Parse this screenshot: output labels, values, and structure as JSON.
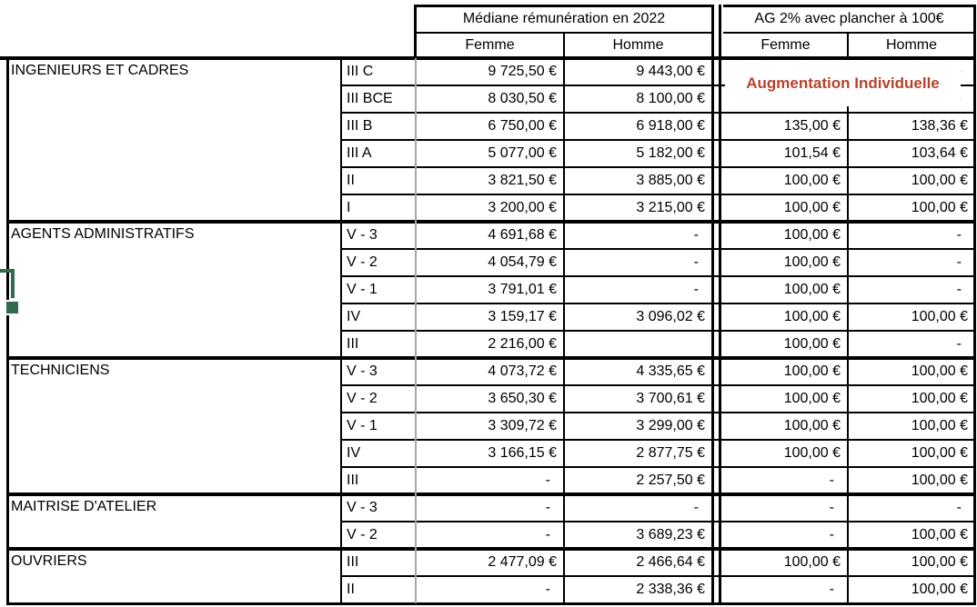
{
  "header": {
    "median_title": "Médiane rémunération en 2022",
    "ag_title": "AG 2% avec plancher à 100€",
    "median_cols": [
      "Femme",
      "Homme"
    ],
    "ag_cols": [
      "Femme",
      "Homme"
    ]
  },
  "overlay": {
    "label": "Augmentation Individuelle"
  },
  "colors": {
    "accent_red": "#b5432c",
    "selection_green": "#2f6b4c"
  },
  "groups": [
    {
      "name": "INGENIEURS ET CADRES",
      "rows": [
        {
          "echelon": "III C",
          "med_f": "9 725,50 €",
          "med_h": "9 443,00 €",
          "ag_f": "-",
          "ag_h": "-"
        },
        {
          "echelon": "III BCE",
          "med_f": "8 030,50 €",
          "med_h": "8 100,00 €",
          "ag_f": "-",
          "ag_h": "-"
        },
        {
          "echelon": "III B",
          "med_f": "6 750,00 €",
          "med_h": "6 918,00 €",
          "ag_f": "135,00 €",
          "ag_h": "138,36 €"
        },
        {
          "echelon": "III A",
          "med_f": "5 077,00 €",
          "med_h": "5 182,00 €",
          "ag_f": "101,54 €",
          "ag_h": "103,64 €"
        },
        {
          "echelon": "II",
          "med_f": "3 821,50 €",
          "med_h": "3 885,00 €",
          "ag_f": "100,00 €",
          "ag_h": "100,00 €"
        },
        {
          "echelon": "I",
          "med_f": "3 200,00 €",
          "med_h": "3 215,00 €",
          "ag_f": "100,00 €",
          "ag_h": "100,00 €"
        }
      ]
    },
    {
      "name": "AGENTS ADMINISTRATIFS",
      "rows": [
        {
          "echelon": "V - 3",
          "med_f": "4 691,68 €",
          "med_h": "-",
          "ag_f": "100,00 €",
          "ag_h": "-"
        },
        {
          "echelon": "V - 2",
          "med_f": "4 054,79 €",
          "med_h": "-",
          "ag_f": "100,00 €",
          "ag_h": "-"
        },
        {
          "echelon": "V - 1",
          "med_f": "3 791,01 €",
          "med_h": "-",
          "ag_f": "100,00 €",
          "ag_h": "-"
        },
        {
          "echelon": "IV",
          "med_f": "3 159,17 €",
          "med_h": "3 096,02 €",
          "ag_f": "100,00 €",
          "ag_h": "100,00 €"
        },
        {
          "echelon": "III",
          "med_f": "2 216,00 €",
          "med_h": "",
          "ag_f": "100,00 €",
          "ag_h": "-"
        }
      ]
    },
    {
      "name": "TECHNICIENS",
      "rows": [
        {
          "echelon": "V - 3",
          "med_f": "4 073,72 €",
          "med_h": "4 335,65 €",
          "ag_f": "100,00 €",
          "ag_h": "100,00 €"
        },
        {
          "echelon": "V - 2",
          "med_f": "3 650,30 €",
          "med_h": "3 700,61 €",
          "ag_f": "100,00 €",
          "ag_h": "100,00 €"
        },
        {
          "echelon": "V - 1",
          "med_f": "3 309,72 €",
          "med_h": "3 299,00 €",
          "ag_f": "100,00 €",
          "ag_h": "100,00 €"
        },
        {
          "echelon": "IV",
          "med_f": "3 166,15 €",
          "med_h": "2 877,75 €",
          "ag_f": "100,00 €",
          "ag_h": "100,00 €"
        },
        {
          "echelon": "III",
          "med_f": "-",
          "med_h": "2 257,50 €",
          "ag_f": "-",
          "ag_h": "100,00 €"
        }
      ]
    },
    {
      "name": "MAITRISE D'ATELIER",
      "rows": [
        {
          "echelon": "V - 3",
          "med_f": "-",
          "med_h": "-",
          "ag_f": "-",
          "ag_h": "-"
        },
        {
          "echelon": "V - 2",
          "med_f": "-",
          "med_h": "3 689,23 €",
          "ag_f": "-",
          "ag_h": "100,00 €"
        }
      ]
    },
    {
      "name": "OUVRIERS",
      "rows": [
        {
          "echelon": "III",
          "med_f": "2 477,09 €",
          "med_h": "2 466,64 €",
          "ag_f": "100,00 €",
          "ag_h": "100,00 €"
        },
        {
          "echelon": "II",
          "med_f": "-",
          "med_h": "2 338,36 €",
          "ag_f": "-",
          "ag_h": "100,00 €"
        }
      ]
    }
  ]
}
